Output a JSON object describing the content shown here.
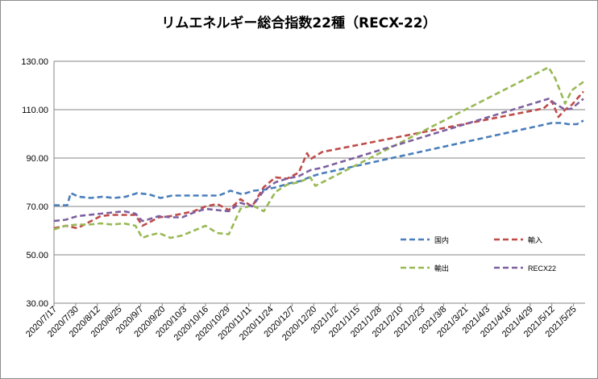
{
  "chart_data": {
    "type": "line",
    "title": "リムエネルギー総合指数22種（RECX-22）",
    "xlabel": "",
    "ylabel": "",
    "ylim": [
      30,
      130
    ],
    "y_ticks": [
      "30.00",
      "50.00",
      "70.00",
      "90.00",
      "110.00",
      "130.00"
    ],
    "x_tick_labels": [
      "2020/7/17",
      "2020/7/30",
      "2020/8/12",
      "2020/8/25",
      "2020/9/7",
      "2020/9/20",
      "2020/10/3",
      "2020/10/16",
      "2020/10/29",
      "2020/11/11",
      "2020/11/24",
      "2020/12/7",
      "2020/12/20",
      "2021/1/2",
      "2021/1/15",
      "2021/1/28",
      "2021/2/10",
      "2021/2/23",
      "2021/3/8",
      "2021/3/21",
      "2021/4/3",
      "2021/4/16",
      "2021/4/29",
      "2021/5/12",
      "2021/5/25"
    ],
    "grid": "horizontal",
    "legend_position": "inside-right",
    "series": [
      {
        "name": "国内",
        "color": "#4a7ebb",
        "x": [
          "2020-07-17",
          "2020-07-25",
          "2020-07-27",
          "2020-08-01",
          "2020-08-08",
          "2020-08-15",
          "2020-08-22",
          "2020-08-29",
          "2020-09-05",
          "2020-09-12",
          "2020-09-19",
          "2020-09-26",
          "2020-10-03",
          "2020-10-10",
          "2020-10-17",
          "2020-10-24",
          "2020-10-31",
          "2020-11-07",
          "2020-11-14",
          "2020-11-21",
          "2020-11-28",
          "2020-12-05",
          "2020-12-12",
          "2020-12-19",
          "2020-12-24",
          "2021-05-12",
          "2021-05-18",
          "2021-05-22",
          "2021-05-27",
          "2021-05-31"
        ],
        "y": [
          70.5,
          70.5,
          75.5,
          74.0,
          73.5,
          74.0,
          73.5,
          74.0,
          75.5,
          75.0,
          73.5,
          74.5,
          74.5,
          74.5,
          74.5,
          74.5,
          76.5,
          75.0,
          76.5,
          77.0,
          78.0,
          79.5,
          80.5,
          82.5,
          83.5,
          104.5,
          104.5,
          104.0,
          104.0,
          105.5
        ]
      },
      {
        "name": "輸入",
        "color": "#be4b48",
        "x": [
          "2020-07-17",
          "2020-07-24",
          "2020-07-31",
          "2020-08-07",
          "2020-08-14",
          "2020-08-21",
          "2020-08-28",
          "2020-09-04",
          "2020-09-08",
          "2020-09-11",
          "2020-09-18",
          "2020-09-25",
          "2020-10-02",
          "2020-10-09",
          "2020-10-16",
          "2020-10-23",
          "2020-10-30",
          "2020-11-06",
          "2020-11-13",
          "2020-11-20",
          "2020-11-27",
          "2020-12-04",
          "2020-12-11",
          "2020-12-16",
          "2020-12-18",
          "2020-12-25",
          "2021-05-07",
          "2021-05-12",
          "2021-05-16",
          "2021-05-20",
          "2021-05-24",
          "2021-05-31"
        ],
        "y": [
          61.0,
          62.0,
          61.0,
          63.5,
          66.0,
          66.5,
          66.5,
          66.5,
          62.0,
          63.0,
          65.5,
          66.0,
          67.0,
          68.0,
          70.0,
          71.0,
          68.5,
          73.0,
          70.0,
          78.0,
          82.0,
          81.5,
          84.0,
          92.0,
          89.5,
          92.5,
          110.5,
          113.5,
          107.0,
          110.0,
          112.0,
          117.5
        ]
      },
      {
        "name": "輸出",
        "color": "#98b954",
        "x": [
          "2020-07-17",
          "2020-07-24",
          "2020-07-31",
          "2020-08-07",
          "2020-08-14",
          "2020-08-21",
          "2020-08-28",
          "2020-09-04",
          "2020-09-08",
          "2020-09-12",
          "2020-09-18",
          "2020-09-25",
          "2020-10-02",
          "2020-10-09",
          "2020-10-16",
          "2020-10-23",
          "2020-10-30",
          "2020-11-03",
          "2020-11-06",
          "2020-11-13",
          "2020-11-20",
          "2020-11-27",
          "2020-12-04",
          "2020-12-11",
          "2020-12-18",
          "2020-12-21",
          "2021-05-10",
          "2021-05-14",
          "2021-05-20",
          "2021-05-24",
          "2021-05-31"
        ],
        "y": [
          60.5,
          62.0,
          62.5,
          62.5,
          63.0,
          62.5,
          63.0,
          62.0,
          57.0,
          58.0,
          59.0,
          57.0,
          58.0,
          60.0,
          62.0,
          59.0,
          58.5,
          64.5,
          69.0,
          70.5,
          68.0,
          76.0,
          79.0,
          80.0,
          82.0,
          78.5,
          127.5,
          123.0,
          112.5,
          118.0,
          121.5
        ]
      },
      {
        "name": "RECX22",
        "color": "#7d60a0",
        "x": [
          "2020-07-17",
          "2020-07-24",
          "2020-07-31",
          "2020-08-07",
          "2020-08-14",
          "2020-08-21",
          "2020-08-28",
          "2020-09-04",
          "2020-09-08",
          "2020-09-11",
          "2020-09-18",
          "2020-09-25",
          "2020-10-02",
          "2020-10-09",
          "2020-10-16",
          "2020-10-23",
          "2020-10-30",
          "2020-11-06",
          "2020-11-13",
          "2020-11-20",
          "2020-11-27",
          "2020-12-04",
          "2020-12-11",
          "2020-12-18",
          "2020-12-25",
          "2021-05-10",
          "2021-05-14",
          "2021-05-20",
          "2021-05-24",
          "2021-05-31"
        ],
        "y": [
          64.0,
          64.5,
          66.0,
          66.5,
          67.0,
          67.5,
          68.0,
          67.0,
          64.0,
          64.5,
          66.0,
          65.5,
          65.5,
          67.5,
          69.0,
          68.5,
          68.0,
          71.5,
          70.0,
          76.5,
          80.0,
          81.5,
          82.5,
          85.0,
          86.0,
          114.5,
          112.5,
          110.0,
          110.5,
          114.5
        ]
      }
    ]
  }
}
